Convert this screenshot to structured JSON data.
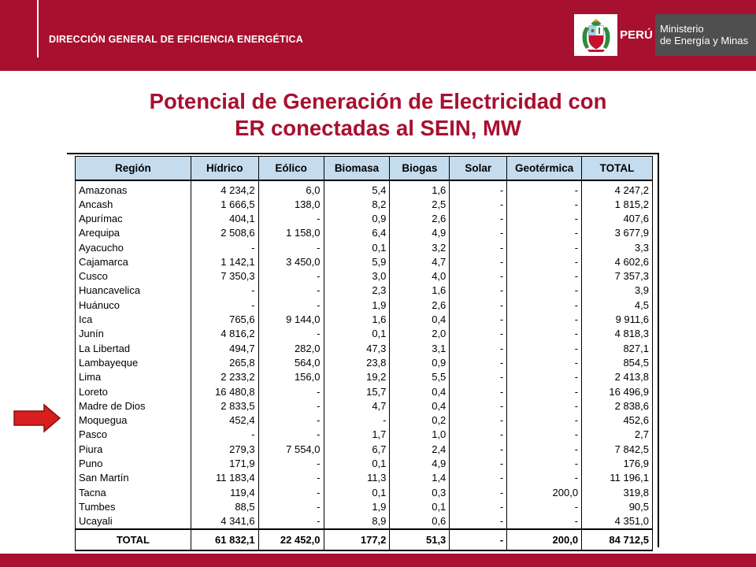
{
  "header": {
    "agency": "DIRECCIÓN GENERAL DE EFICIENCIA ENERGÉTICA",
    "country": "PERÚ",
    "ministry_line1": "Ministerio",
    "ministry_line2": "de Energía y Minas",
    "brand_color": "#a8102f"
  },
  "title": {
    "line1": "Potencial de Generación de Electricidad con",
    "line2": "ER conectadas al SEIN, MW"
  },
  "table": {
    "columns": [
      "Región",
      "Hídrico",
      "Eólico",
      "Biomasa",
      "Biogas",
      "Solar",
      "Geotérmica",
      "TOTAL"
    ],
    "rows": [
      [
        "Amazonas",
        "4 234,2",
        "6,0",
        "5,4",
        "1,6",
        "-",
        "-",
        "4 247,2"
      ],
      [
        "Ancash",
        "1 666,5",
        "138,0",
        "8,2",
        "2,5",
        "-",
        "-",
        "1 815,2"
      ],
      [
        "Apurímac",
        "404,1",
        "-",
        "0,9",
        "2,6",
        "-",
        "-",
        "407,6"
      ],
      [
        "Arequipa",
        "2 508,6",
        "1 158,0",
        "6,4",
        "4,9",
        "-",
        "-",
        "3 677,9"
      ],
      [
        "Ayacucho",
        "-",
        "-",
        "0,1",
        "3,2",
        "-",
        "-",
        "3,3"
      ],
      [
        "Cajamarca",
        "1 142,1",
        "3 450,0",
        "5,9",
        "4,7",
        "-",
        "-",
        "4 602,6"
      ],
      [
        "Cusco",
        "7 350,3",
        "-",
        "3,0",
        "4,0",
        "-",
        "-",
        "7 357,3"
      ],
      [
        "Huancavelica",
        "-",
        "-",
        "2,3",
        "1,6",
        "-",
        "-",
        "3,9"
      ],
      [
        "Huánuco",
        "-",
        "-",
        "1,9",
        "2,6",
        "-",
        "-",
        "4,5"
      ],
      [
        "Ica",
        "765,6",
        "9 144,0",
        "1,6",
        "0,4",
        "-",
        "-",
        "9 911,6"
      ],
      [
        "Junín",
        "4 816,2",
        "-",
        "0,1",
        "2,0",
        "-",
        "-",
        "4 818,3"
      ],
      [
        "La Libertad",
        "494,7",
        "282,0",
        "47,3",
        "3,1",
        "-",
        "-",
        "827,1"
      ],
      [
        "Lambayeque",
        "265,8",
        "564,0",
        "23,8",
        "0,9",
        "-",
        "-",
        "854,5"
      ],
      [
        "Lima",
        "2 233,2",
        "156,0",
        "19,2",
        "5,5",
        "-",
        "-",
        "2 413,8"
      ],
      [
        "Loreto",
        "16 480,8",
        "-",
        "15,7",
        "0,4",
        "-",
        "-",
        "16 496,9"
      ],
      [
        "Madre de Dios",
        "2 833,5",
        "-",
        "4,7",
        "0,4",
        "-",
        "-",
        "2 838,6"
      ],
      [
        "Moquegua",
        "452,4",
        "-",
        "-",
        "0,2",
        "-",
        "-",
        "452,6"
      ],
      [
        "Pasco",
        "-",
        "-",
        "1,7",
        "1,0",
        "-",
        "-",
        "2,7"
      ],
      [
        "Piura",
        "279,3",
        "7 554,0",
        "6,7",
        "2,4",
        "-",
        "-",
        "7 842,5"
      ],
      [
        "Puno",
        "171,9",
        "-",
        "0,1",
        "4,9",
        "-",
        "-",
        "176,9"
      ],
      [
        "San Martín",
        "11 183,4",
        "-",
        "11,3",
        "1,4",
        "-",
        "-",
        "11 196,1"
      ],
      [
        "Tacna",
        "119,4",
        "-",
        "0,1",
        "0,3",
        "-",
        "200,0",
        "319,8"
      ],
      [
        "Tumbes",
        "88,5",
        "-",
        "1,9",
        "0,1",
        "-",
        "-",
        "90,5"
      ],
      [
        "Ucayali",
        "4 341,6",
        "-",
        "8,9",
        "0,6",
        "-",
        "-",
        "4 351,0"
      ]
    ],
    "total": [
      "TOTAL",
      "61 832,1",
      "22 452,0",
      "177,2",
      "51,3",
      "-",
      "200,0",
      "84 712,5"
    ],
    "header_color": "#c4dcee",
    "highlighted_region": "Moquegua"
  }
}
